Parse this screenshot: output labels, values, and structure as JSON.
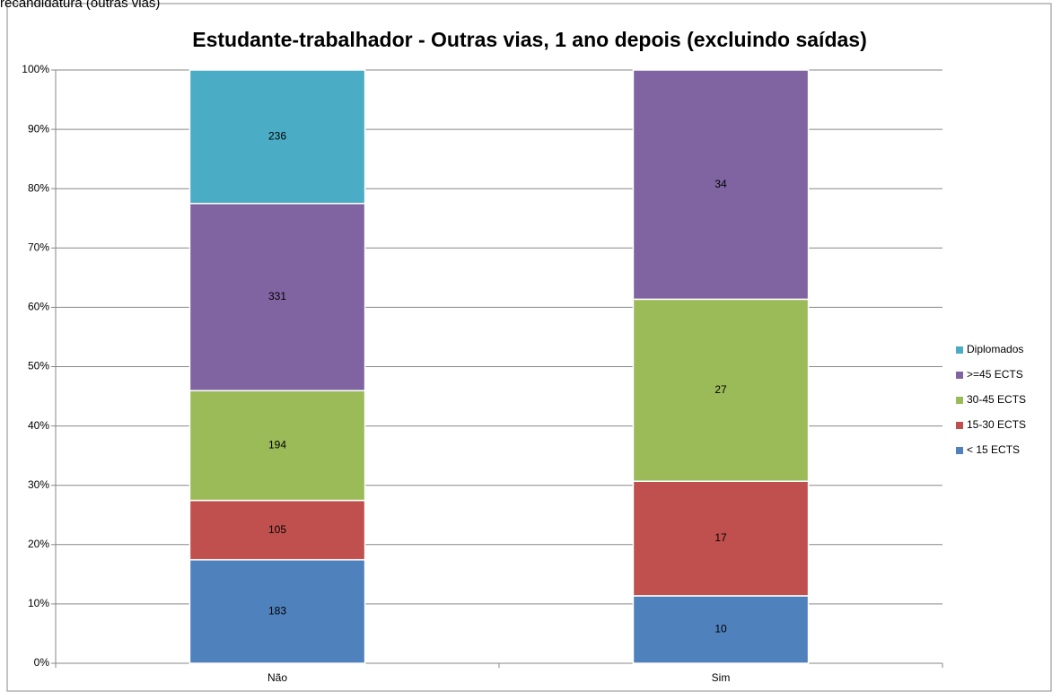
{
  "caption": "recandidatura (outras vias)",
  "chart_data": {
    "type": "bar",
    "stacking": "percent",
    "title": "Estudante-trabalhador - Outras vias, 1 ano depois (excluindo saídas)",
    "categories": [
      "Não",
      "Sim"
    ],
    "series": [
      {
        "name": "< 15 ECTS",
        "color": "#4f81bd",
        "values": [
          183,
          10
        ]
      },
      {
        "name": "15-30 ECTS",
        "color": "#c0504d",
        "values": [
          105,
          17
        ]
      },
      {
        "name": "30-45 ECTS",
        "color": "#9bbb59",
        "values": [
          194,
          27
        ]
      },
      {
        "name": ">=45 ECTS",
        "color": "#8064a2",
        "values": [
          331,
          34
        ]
      },
      {
        "name": "Diplomados",
        "color": "#4bacc6",
        "values": [
          236,
          null
        ]
      }
    ],
    "ylim": [
      0,
      100
    ],
    "yticks": [
      {
        "value": 0,
        "label": "0%"
      },
      {
        "value": 10,
        "label": "10%"
      },
      {
        "value": 20,
        "label": "20%"
      },
      {
        "value": 30,
        "label": "30%"
      },
      {
        "value": 40,
        "label": "40%"
      },
      {
        "value": 50,
        "label": "50%"
      },
      {
        "value": 60,
        "label": "60%"
      },
      {
        "value": 70,
        "label": "70%"
      },
      {
        "value": 80,
        "label": "80%"
      },
      {
        "value": 90,
        "label": "90%"
      },
      {
        "value": 100,
        "label": "100%"
      }
    ],
    "grid": true,
    "legend": "right"
  }
}
